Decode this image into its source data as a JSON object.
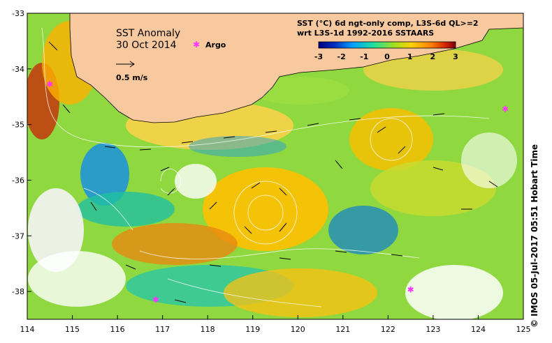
{
  "map": {
    "title": "SST Anomaly",
    "date": "30 Oct 2014",
    "legend_argo": "Argo",
    "scale_label": "0.5 m/s",
    "colorbar_title_1": "SST (°C) 6d ngt-only comp, L3S-6d QL>=2",
    "colorbar_title_2": "wrt L3S-1d 1992-2016 SSTAARS",
    "colorbar_ticks": [
      "-3",
      "-2",
      "-1",
      "0",
      "1",
      "2",
      "3"
    ],
    "colorbar_range": [
      -3,
      3
    ],
    "x_ticks": [
      "114",
      "115",
      "116",
      "117",
      "118",
      "119",
      "120",
      "121",
      "122",
      "123",
      "124",
      "125"
    ],
    "y_ticks": [
      "-33",
      "-34",
      "-35",
      "-36",
      "-37",
      "-38"
    ],
    "lon_range": [
      114,
      125
    ],
    "lat_range": [
      -38.5,
      -33
    ],
    "credit": "© IMOS 05-Jul-2017 05:51 Hobart Time",
    "argo_floats": [
      {
        "lon": 114.5,
        "lat": -34.28
      },
      {
        "lon": 124.6,
        "lat": -34.72
      },
      {
        "lon": 116.85,
        "lat": -38.15
      },
      {
        "lon": 122.5,
        "lat": -37.97
      }
    ],
    "colors": {
      "land": "#f8c89e",
      "argo": "#ff33ff",
      "colorbar": [
        "#00007f",
        "#0030c0",
        "#00a0ff",
        "#20e0a0",
        "#a0e020",
        "#ffd000",
        "#ff8000",
        "#d02000",
        "#7f0000"
      ]
    }
  }
}
